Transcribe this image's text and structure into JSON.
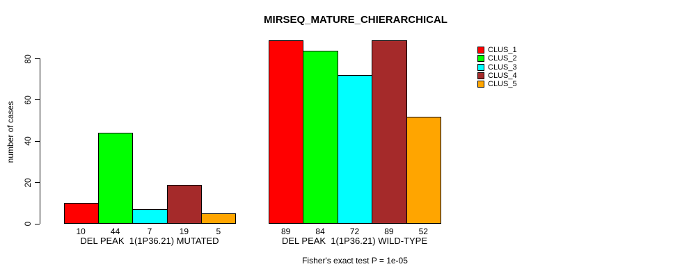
{
  "chart_data": {
    "type": "bar",
    "title": "MIRSEQ_MATURE_CHIERARCHICAL",
    "ylabel": "number of cases",
    "xlabel": "",
    "yticks": [
      0,
      20,
      40,
      60,
      80
    ],
    "ylim": [
      0,
      89
    ],
    "grid": false,
    "legend_position": "right",
    "bar_value_labels": true,
    "categories": [
      "DEL PEAK  1(1P36.21) MUTATED",
      "DEL PEAK  1(1P36.21) WILD-TYPE"
    ],
    "series": [
      {
        "name": "CLUS_1",
        "color": "#FF0000",
        "values": [
          10,
          89
        ]
      },
      {
        "name": "CLUS_2",
        "color": "#00FF00",
        "values": [
          44,
          84
        ]
      },
      {
        "name": "CLUS_3",
        "color": "#00FFFF",
        "values": [
          7,
          72
        ]
      },
      {
        "name": "CLUS_4",
        "color": "#A52A2A",
        "values": [
          19,
          89
        ]
      },
      {
        "name": "CLUS_5",
        "color": "#FFA500",
        "values": [
          5,
          52
        ]
      }
    ],
    "annotation": "Fisher's exact test P = 1e-05"
  }
}
